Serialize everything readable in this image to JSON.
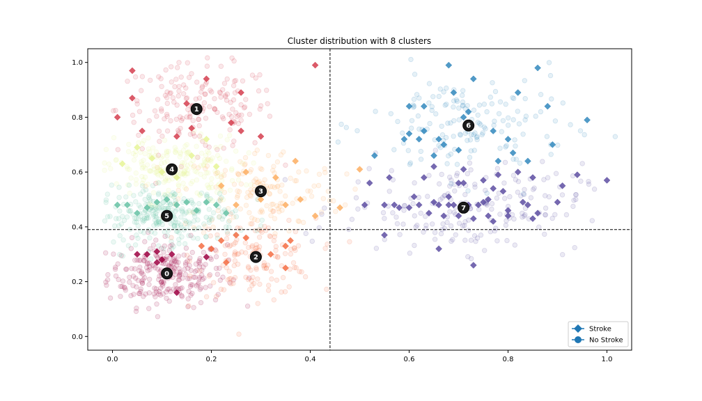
{
  "chart_data": {
    "type": "scatter",
    "title": "Cluster distribution with 8 clusters",
    "xlabel": "",
    "ylabel": "",
    "xlim": [
      -0.05,
      1.05
    ],
    "ylim": [
      -0.05,
      1.05
    ],
    "x_ticks": [
      "0.0",
      "0.2",
      "0.4",
      "0.6",
      "0.8",
      "1.0"
    ],
    "y_ticks": [
      "0.0",
      "0.2",
      "0.4",
      "0.6",
      "0.8",
      "1.0"
    ],
    "grid": false,
    "reference_lines": {
      "vertical_x": 0.44,
      "horizontal_y": 0.39
    },
    "legend": {
      "position": "lower right",
      "entries": [
        {
          "label": "Stroke",
          "marker": "diamond",
          "color": "#1f77b4"
        },
        {
          "label": "No Stroke",
          "marker": "circle",
          "color": "#1f77b4"
        }
      ]
    },
    "clusters": [
      {
        "id": "0",
        "center": [
          0.11,
          0.23
        ],
        "color": "#9e0142",
        "stroke_points": [
          [
            0.05,
            0.3
          ],
          [
            0.07,
            0.3
          ],
          [
            0.09,
            0.27
          ],
          [
            0.09,
            0.31
          ],
          [
            0.1,
            0.28
          ],
          [
            0.12,
            0.3
          ],
          [
            0.13,
            0.16
          ],
          [
            0.19,
            0.29
          ]
        ]
      },
      {
        "id": "1",
        "center": [
          0.17,
          0.83
        ],
        "color": "#d53e4f",
        "stroke_points": [
          [
            0.01,
            0.8
          ],
          [
            0.04,
            0.97
          ],
          [
            0.04,
            0.87
          ],
          [
            0.06,
            0.75
          ],
          [
            0.13,
            0.73
          ],
          [
            0.15,
            0.85
          ],
          [
            0.16,
            0.76
          ],
          [
            0.19,
            0.94
          ],
          [
            0.24,
            0.78
          ],
          [
            0.26,
            0.89
          ],
          [
            0.26,
            0.75
          ],
          [
            0.3,
            0.73
          ],
          [
            0.41,
            0.99
          ]
        ]
      },
      {
        "id": "2",
        "center": [
          0.29,
          0.29
        ],
        "color": "#f46d43",
        "stroke_points": [
          [
            0.18,
            0.33
          ],
          [
            0.2,
            0.32
          ],
          [
            0.22,
            0.35
          ],
          [
            0.23,
            0.27
          ],
          [
            0.25,
            0.37
          ],
          [
            0.27,
            0.36
          ],
          [
            0.32,
            0.3
          ],
          [
            0.35,
            0.33
          ],
          [
            0.36,
            0.35
          ],
          [
            0.35,
            0.25
          ]
        ]
      },
      {
        "id": "3",
        "center": [
          0.3,
          0.53
        ],
        "color": "#fdae61",
        "stroke_points": [
          [
            0.22,
            0.55
          ],
          [
            0.25,
            0.48
          ],
          [
            0.27,
            0.6
          ],
          [
            0.3,
            0.5
          ],
          [
            0.33,
            0.58
          ],
          [
            0.35,
            0.48
          ],
          [
            0.37,
            0.64
          ],
          [
            0.38,
            0.5
          ],
          [
            0.41,
            0.44
          ],
          [
            0.46,
            0.47
          ],
          [
            0.5,
            0.61
          ]
        ]
      },
      {
        "id": "4",
        "center": [
          0.12,
          0.61
        ],
        "color": "#e6f598",
        "stroke_points": [
          [
            0.02,
            0.63
          ],
          [
            0.05,
            0.69
          ],
          [
            0.08,
            0.65
          ],
          [
            0.1,
            0.6
          ],
          [
            0.13,
            0.58
          ],
          [
            0.16,
            0.66
          ],
          [
            0.19,
            0.72
          ],
          [
            0.21,
            0.62
          ]
        ]
      },
      {
        "id": "5",
        "center": [
          0.11,
          0.44
        ],
        "color": "#66c2a5",
        "stroke_points": [
          [
            0.01,
            0.48
          ],
          [
            0.03,
            0.48
          ],
          [
            0.05,
            0.45
          ],
          [
            0.07,
            0.47
          ],
          [
            0.09,
            0.49
          ],
          [
            0.11,
            0.5
          ],
          [
            0.13,
            0.48
          ],
          [
            0.15,
            0.49
          ],
          [
            0.17,
            0.46
          ],
          [
            0.19,
            0.49
          ],
          [
            0.21,
            0.48
          ],
          [
            0.23,
            0.45
          ]
        ]
      },
      {
        "id": "6",
        "center": [
          0.72,
          0.77
        ],
        "color": "#3288bd",
        "stroke_points": [
          [
            0.53,
            0.66
          ],
          [
            0.59,
            0.72
          ],
          [
            0.6,
            0.84
          ],
          [
            0.6,
            0.74
          ],
          [
            0.62,
            0.72
          ],
          [
            0.63,
            0.84
          ],
          [
            0.63,
            0.75
          ],
          [
            0.65,
            0.66
          ],
          [
            0.66,
            0.72
          ],
          [
            0.67,
            0.7
          ],
          [
            0.68,
            0.99
          ],
          [
            0.69,
            0.89
          ],
          [
            0.7,
            0.68
          ],
          [
            0.71,
            0.8
          ],
          [
            0.72,
            0.82
          ],
          [
            0.73,
            0.94
          ],
          [
            0.77,
            0.75
          ],
          [
            0.78,
            0.64
          ],
          [
            0.8,
            0.72
          ],
          [
            0.81,
            0.67
          ],
          [
            0.82,
            0.89
          ],
          [
            0.84,
            0.64
          ],
          [
            0.86,
            0.98
          ],
          [
            0.88,
            0.84
          ],
          [
            0.89,
            0.7
          ],
          [
            0.96,
            0.79
          ]
        ]
      },
      {
        "id": "7",
        "center": [
          0.71,
          0.47
        ],
        "color": "#5e4fa2",
        "stroke_points": [
          [
            0.51,
            0.48
          ],
          [
            0.52,
            0.56
          ],
          [
            0.55,
            0.48
          ],
          [
            0.55,
            0.37
          ],
          [
            0.56,
            0.58
          ],
          [
            0.57,
            0.48
          ],
          [
            0.58,
            0.47
          ],
          [
            0.6,
            0.47
          ],
          [
            0.61,
            0.51
          ],
          [
            0.62,
            0.48
          ],
          [
            0.63,
            0.58
          ],
          [
            0.64,
            0.45
          ],
          [
            0.65,
            0.62
          ],
          [
            0.65,
            0.49
          ],
          [
            0.66,
            0.48
          ],
          [
            0.66,
            0.32
          ],
          [
            0.67,
            0.44
          ],
          [
            0.68,
            0.51
          ],
          [
            0.68,
            0.48
          ],
          [
            0.69,
            0.48
          ],
          [
            0.7,
            0.56
          ],
          [
            0.7,
            0.44
          ],
          [
            0.71,
            0.61
          ],
          [
            0.71,
            0.56
          ],
          [
            0.72,
            0.48
          ],
          [
            0.73,
            0.43
          ],
          [
            0.73,
            0.26
          ],
          [
            0.74,
            0.48
          ],
          [
            0.75,
            0.57
          ],
          [
            0.75,
            0.49
          ],
          [
            0.76,
            0.44
          ],
          [
            0.76,
            0.5
          ],
          [
            0.77,
            0.54
          ],
          [
            0.77,
            0.42
          ],
          [
            0.78,
            0.59
          ],
          [
            0.79,
            0.53
          ],
          [
            0.8,
            0.46
          ],
          [
            0.8,
            0.44
          ],
          [
            0.82,
            0.6
          ],
          [
            0.83,
            0.49
          ],
          [
            0.84,
            0.48
          ],
          [
            0.85,
            0.43
          ],
          [
            0.85,
            0.58
          ],
          [
            0.86,
            0.45
          ],
          [
            0.9,
            0.49
          ],
          [
            0.91,
            0.55
          ],
          [
            0.94,
            0.59
          ],
          [
            1.0,
            0.57
          ]
        ]
      }
    ],
    "background_points_note_free": true
  }
}
